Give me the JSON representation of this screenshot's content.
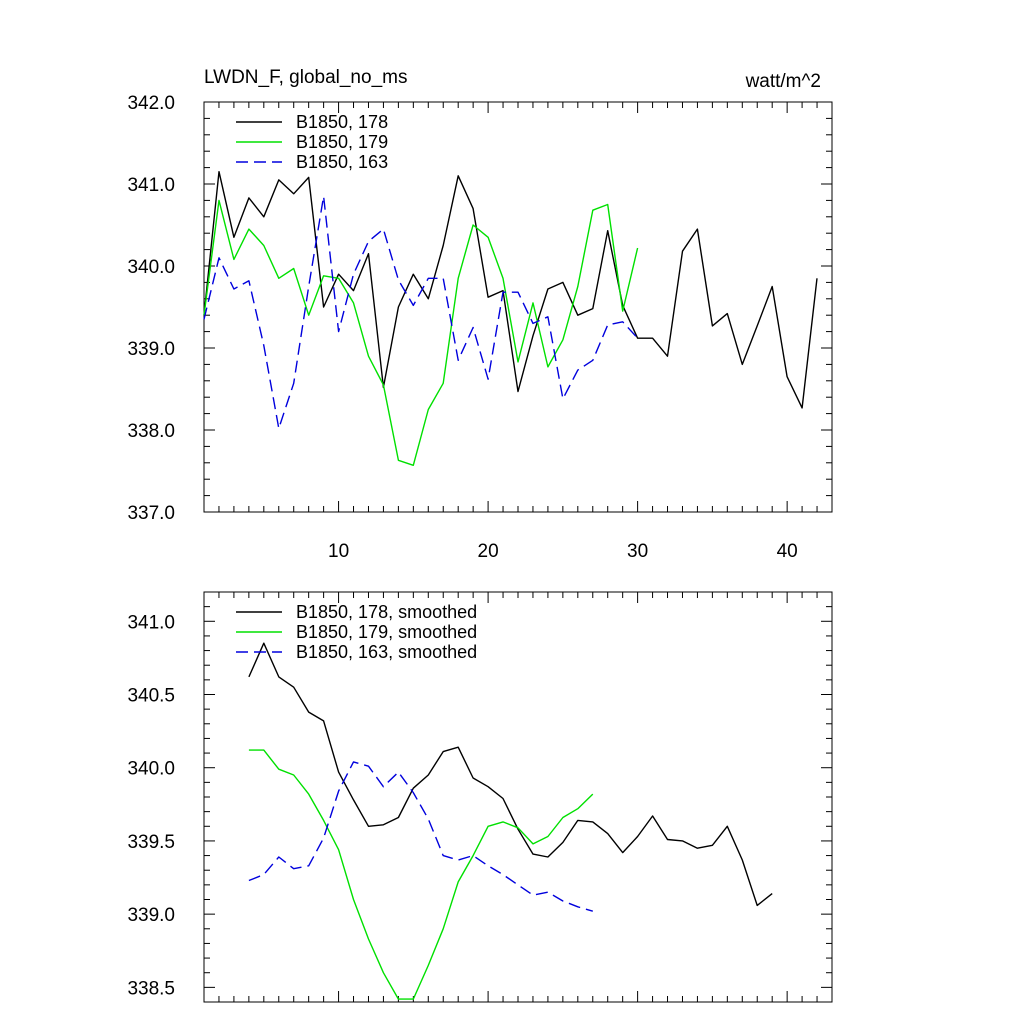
{
  "header": {
    "title": "LWDN_F, global_no_ms",
    "units": "watt/m^2"
  },
  "chart_data": [
    {
      "type": "line",
      "title": "LWDN_F, global_no_ms",
      "units": "watt/m^2",
      "xlim": [
        1,
        43
      ],
      "ylim": [
        337.0,
        342.0
      ],
      "xticks": [
        10,
        20,
        30,
        40
      ],
      "xtick_labels": [
        "10",
        "20",
        "30",
        "40"
      ],
      "yticks": [
        337.0,
        338.0,
        339.0,
        340.0,
        341.0,
        342.0
      ],
      "ytick_labels": [
        "337.0",
        "338.0",
        "339.0",
        "340.0",
        "341.0",
        "342.0"
      ],
      "legend_position": "top-left",
      "series": [
        {
          "name": "B1850, 178",
          "color": "#000000",
          "dash": "solid",
          "x": [
            1,
            2,
            3,
            4,
            5,
            6,
            7,
            8,
            9,
            10,
            11,
            12,
            13,
            14,
            15,
            16,
            17,
            18,
            19,
            20,
            21,
            22,
            23,
            24,
            25,
            26,
            27,
            28,
            29,
            30,
            31,
            32,
            33,
            34,
            35,
            36,
            37,
            38,
            39,
            40,
            41,
            42
          ],
          "y": [
            339.4,
            341.15,
            340.35,
            340.83,
            340.6,
            341.05,
            340.88,
            341.08,
            339.5,
            339.9,
            339.7,
            340.15,
            338.52,
            339.5,
            339.9,
            339.6,
            340.25,
            341.1,
            340.7,
            339.62,
            339.7,
            338.47,
            339.15,
            339.72,
            339.8,
            339.4,
            339.48,
            340.43,
            339.52,
            339.12,
            339.12,
            338.9,
            340.18,
            340.45,
            339.27,
            339.42,
            338.8,
            339.27,
            339.75,
            338.65,
            338.27,
            339.85
          ]
        },
        {
          "name": "B1850, 179",
          "color": "#00e000",
          "dash": "solid",
          "x": [
            1,
            2,
            3,
            4,
            5,
            6,
            7,
            8,
            9,
            10,
            11,
            12,
            13,
            14,
            15,
            16,
            17,
            18,
            19,
            20,
            21,
            22,
            23,
            24,
            25,
            26,
            27,
            28,
            29,
            30
          ],
          "y": [
            339.4,
            340.8,
            340.08,
            340.45,
            340.25,
            339.85,
            339.97,
            339.4,
            339.88,
            339.85,
            339.55,
            338.9,
            338.55,
            337.63,
            337.57,
            338.25,
            338.57,
            339.85,
            340.5,
            340.35,
            339.85,
            338.83,
            339.55,
            338.77,
            339.1,
            339.75,
            340.68,
            340.75,
            339.45,
            340.22
          ]
        },
        {
          "name": "B1850, 163",
          "color": "#0000dd",
          "dash": "dashed",
          "x": [
            1,
            2,
            3,
            4,
            5,
            6,
            7,
            8,
            9,
            10,
            11,
            12,
            13,
            14,
            15,
            16,
            17,
            18,
            19,
            20,
            21,
            22,
            23,
            24,
            25,
            26,
            27,
            28,
            29,
            30
          ],
          "y": [
            339.35,
            340.1,
            339.72,
            339.82,
            339.03,
            338.02,
            338.57,
            339.75,
            340.85,
            339.2,
            339.9,
            340.3,
            340.45,
            339.83,
            339.52,
            339.85,
            339.85,
            338.85,
            339.25,
            338.62,
            339.68,
            339.68,
            339.3,
            339.38,
            338.38,
            338.73,
            338.85,
            339.28,
            339.32,
            339.12
          ]
        }
      ]
    },
    {
      "type": "line",
      "xlim": [
        1,
        43
      ],
      "ylim": [
        338.4,
        341.2
      ],
      "xticks": [
        10,
        20,
        30,
        40
      ],
      "yticks": [
        338.5,
        339.0,
        339.5,
        340.0,
        340.5,
        341.0
      ],
      "ytick_labels": [
        "338.5",
        "339.0",
        "339.5",
        "340.0",
        "340.5",
        "341.0"
      ],
      "legend_position": "top-left",
      "series": [
        {
          "name": "B1850, 178, smoothed",
          "color": "#000000",
          "dash": "solid",
          "x": [
            4,
            5,
            6,
            7,
            8,
            9,
            10,
            11,
            12,
            13,
            14,
            15,
            16,
            17,
            18,
            19,
            20,
            21,
            22,
            23,
            24,
            25,
            26,
            27,
            28,
            29,
            30,
            31,
            32,
            33,
            34,
            35,
            36,
            37,
            38,
            39
          ],
          "y": [
            340.62,
            340.85,
            340.62,
            340.55,
            340.38,
            340.32,
            339.97,
            339.78,
            339.6,
            339.61,
            339.66,
            339.86,
            339.95,
            340.11,
            340.14,
            339.93,
            339.87,
            339.79,
            339.58,
            339.41,
            339.39,
            339.49,
            339.64,
            339.63,
            339.55,
            339.42,
            339.53,
            339.67,
            339.51,
            339.5,
            339.45,
            339.47,
            339.6,
            339.37,
            339.06,
            339.14
          ]
        },
        {
          "name": "B1850, 179, smoothed",
          "color": "#00e000",
          "dash": "solid",
          "x": [
            4,
            5,
            6,
            7,
            8,
            9,
            10,
            11,
            12,
            13,
            14,
            15,
            16,
            17,
            18,
            19,
            20,
            21,
            22,
            23,
            24,
            25,
            26,
            27
          ],
          "y": [
            340.12,
            340.12,
            339.99,
            339.95,
            339.82,
            339.64,
            339.44,
            339.1,
            338.83,
            338.6,
            338.42,
            338.42,
            338.65,
            338.9,
            339.22,
            339.4,
            339.6,
            339.63,
            339.59,
            339.48,
            339.53,
            339.66,
            339.72,
            339.82
          ]
        },
        {
          "name": "B1850, 163, smoothed",
          "color": "#0000dd",
          "dash": "dashed",
          "x": [
            4,
            5,
            6,
            7,
            8,
            9,
            10,
            11,
            12,
            13,
            14,
            15,
            16,
            17,
            18,
            19,
            20,
            21,
            22,
            23,
            24,
            25,
            26,
            27
          ],
          "y": [
            339.23,
            339.27,
            339.39,
            339.31,
            339.33,
            339.52,
            339.84,
            340.04,
            340.01,
            339.87,
            339.97,
            339.83,
            339.65,
            339.4,
            339.37,
            339.4,
            339.33,
            339.27,
            339.2,
            339.13,
            339.15,
            339.09,
            339.05,
            339.02
          ]
        }
      ]
    }
  ]
}
